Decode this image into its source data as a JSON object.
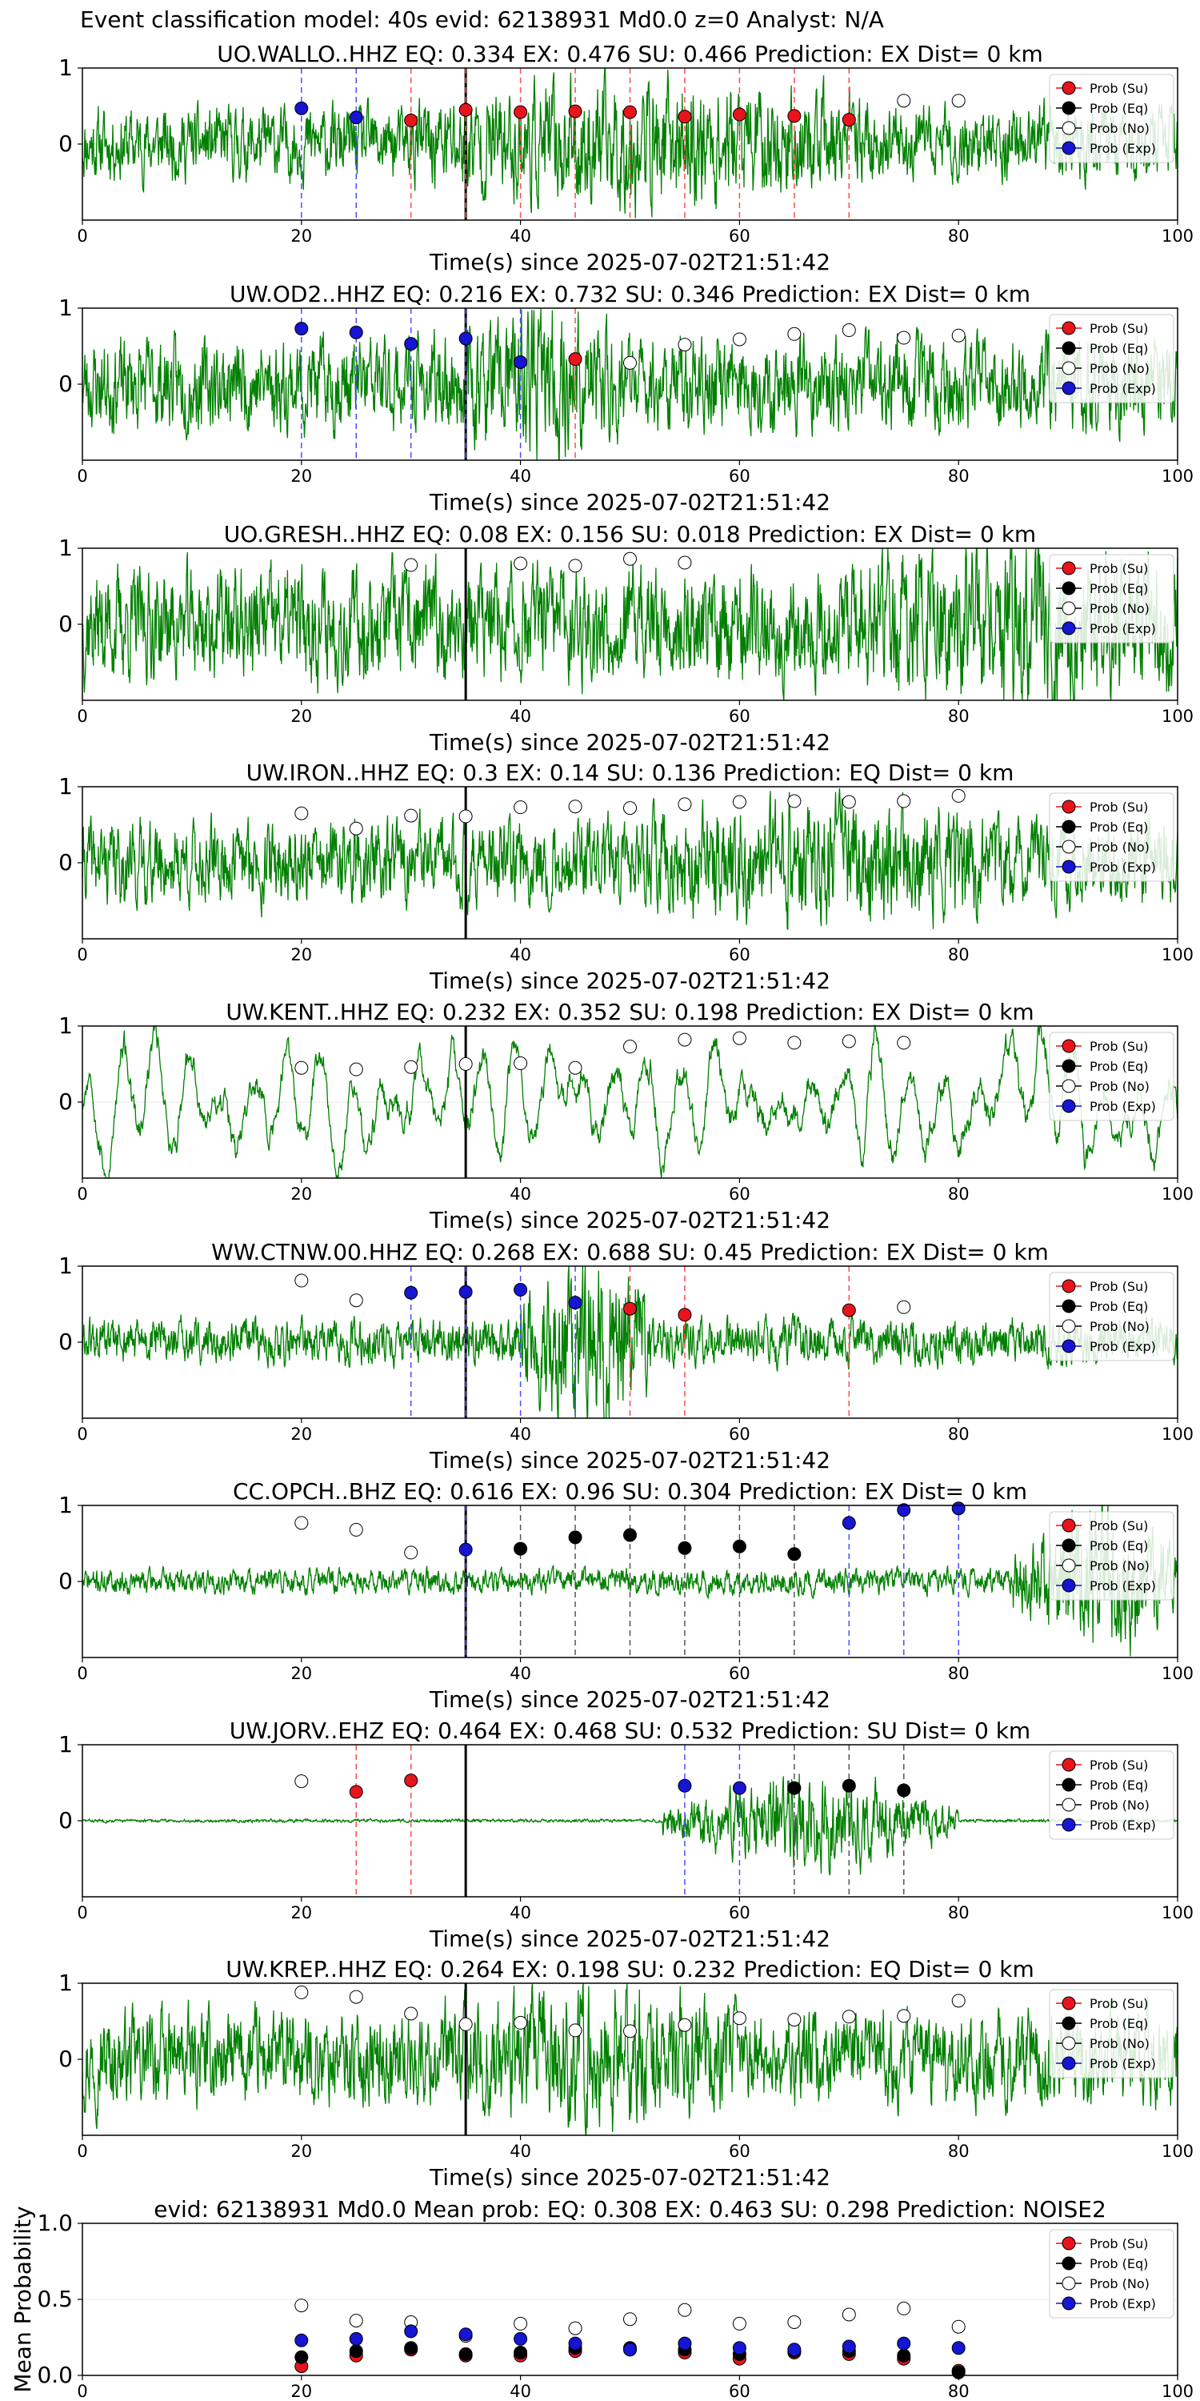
{
  "figure_title": "Event classification model: 40s evid: 62138931 Md0.0 z=0 Analyst: N/A",
  "legend_labels": [
    "Prob (Su)",
    "Prob (Eq)",
    "Prob (No)",
    "Prob (Exp)"
  ],
  "colors": {
    "su": "#e8141c",
    "eq": "#000000",
    "no": "#ffffff",
    "exp": "#1515d2",
    "trace": "#008000",
    "su_line": "#ff4d4d",
    "exp_line": "#4d4dff",
    "eq_line": "#555555"
  },
  "chart_data": [
    {
      "type": "scatter",
      "title": "UO.WALLO..HHZ   EQ: 0.334  EX: 0.476  SU: 0.466    Prediction: EX    Dist= 0 km",
      "xlabel": "Time(s) since 2025-07-02T21:51:42",
      "ylabel": "",
      "xlim": [
        0,
        100
      ],
      "ylim": [
        -1,
        1
      ],
      "xticks": [
        0,
        20,
        40,
        60,
        80,
        100
      ],
      "yticks": [
        0,
        1
      ],
      "pick_time": 35,
      "waveform": {
        "amplitude": 0.35,
        "burst": [
          30,
          72,
          1.8
        ],
        "seed": 11
      },
      "points": [
        {
          "x": 20,
          "y": 0.47,
          "cls": "exp"
        },
        {
          "x": 25,
          "y": 0.35,
          "cls": "exp"
        },
        {
          "x": 30,
          "y": 0.31,
          "cls": "su"
        },
        {
          "x": 35,
          "y": 0.45,
          "cls": "su"
        },
        {
          "x": 40,
          "y": 0.42,
          "cls": "su"
        },
        {
          "x": 45,
          "y": 0.43,
          "cls": "su"
        },
        {
          "x": 50,
          "y": 0.42,
          "cls": "su"
        },
        {
          "x": 55,
          "y": 0.36,
          "cls": "su"
        },
        {
          "x": 60,
          "y": 0.39,
          "cls": "su"
        },
        {
          "x": 65,
          "y": 0.37,
          "cls": "su"
        },
        {
          "x": 70,
          "y": 0.32,
          "cls": "su"
        },
        {
          "x": 75,
          "y": 0.57,
          "cls": "no"
        },
        {
          "x": 80,
          "y": 0.57,
          "cls": "no"
        }
      ]
    },
    {
      "type": "scatter",
      "title": "UW.OD2..HHZ   EQ: 0.216  EX: 0.732  SU: 0.346   Prediction: EX    Dist= 0 km",
      "xlabel": "Time(s) since 2025-07-02T21:51:42",
      "ylabel": "",
      "xlim": [
        0,
        100
      ],
      "ylim": [
        -1,
        1
      ],
      "xticks": [
        0,
        20,
        40,
        60,
        80,
        100
      ],
      "yticks": [
        0,
        1
      ],
      "pick_time": 35,
      "waveform": {
        "amplitude": 0.45,
        "burst": [
          35,
          50,
          1.6
        ],
        "seed": 23
      },
      "points": [
        {
          "x": 20,
          "y": 0.73,
          "cls": "exp"
        },
        {
          "x": 25,
          "y": 0.68,
          "cls": "exp"
        },
        {
          "x": 30,
          "y": 0.53,
          "cls": "exp"
        },
        {
          "x": 35,
          "y": 0.6,
          "cls": "exp"
        },
        {
          "x": 40,
          "y": 0.29,
          "cls": "exp"
        },
        {
          "x": 45,
          "y": 0.33,
          "cls": "su"
        },
        {
          "x": 50,
          "y": 0.28,
          "cls": "no"
        },
        {
          "x": 55,
          "y": 0.52,
          "cls": "no"
        },
        {
          "x": 60,
          "y": 0.59,
          "cls": "no"
        },
        {
          "x": 65,
          "y": 0.66,
          "cls": "no"
        },
        {
          "x": 70,
          "y": 0.71,
          "cls": "no"
        },
        {
          "x": 75,
          "y": 0.61,
          "cls": "no"
        },
        {
          "x": 80,
          "y": 0.64,
          "cls": "no"
        }
      ]
    },
    {
      "type": "scatter",
      "title": "UO.GRESH..HHZ   EQ: 0.08  EX: 0.156  SU: 0.018   Prediction: EX    Dist= 0 km",
      "xlabel": "Time(s) since 2025-07-02T21:51:42",
      "ylabel": "",
      "xlim": [
        0,
        100
      ],
      "ylim": [
        -1,
        1
      ],
      "xticks": [
        0,
        20,
        40,
        60,
        80,
        100
      ],
      "yticks": [
        0,
        1
      ],
      "pick_time": 35,
      "waveform": {
        "amplitude": 0.55,
        "burst": [
          70,
          100,
          1.5
        ],
        "seed": 37
      },
      "points": [
        {
          "x": 30,
          "y": 0.78,
          "cls": "no"
        },
        {
          "x": 40,
          "y": 0.8,
          "cls": "no"
        },
        {
          "x": 45,
          "y": 0.77,
          "cls": "no"
        },
        {
          "x": 50,
          "y": 0.86,
          "cls": "no"
        },
        {
          "x": 55,
          "y": 0.81,
          "cls": "no"
        }
      ]
    },
    {
      "type": "scatter",
      "title": "UW.IRON..HHZ   EQ: 0.3  EX: 0.14  SU: 0.136   Prediction: EQ    Dist= 0 km",
      "xlabel": "Time(s) since 2025-07-02T21:51:42",
      "ylabel": "",
      "xlim": [
        0,
        100
      ],
      "ylim": [
        -1,
        1
      ],
      "xticks": [
        0,
        20,
        40,
        60,
        80,
        100
      ],
      "yticks": [
        0,
        1
      ],
      "pick_time": 35,
      "waveform": {
        "amplitude": 0.4,
        "burst": [
          50,
          85,
          1.5
        ],
        "seed": 41
      },
      "points": [
        {
          "x": 20,
          "y": 0.65,
          "cls": "no"
        },
        {
          "x": 25,
          "y": 0.45,
          "cls": "no"
        },
        {
          "x": 30,
          "y": 0.62,
          "cls": "no"
        },
        {
          "x": 35,
          "y": 0.61,
          "cls": "no"
        },
        {
          "x": 40,
          "y": 0.73,
          "cls": "no"
        },
        {
          "x": 45,
          "y": 0.74,
          "cls": "no"
        },
        {
          "x": 50,
          "y": 0.72,
          "cls": "no"
        },
        {
          "x": 55,
          "y": 0.77,
          "cls": "no"
        },
        {
          "x": 60,
          "y": 0.8,
          "cls": "no"
        },
        {
          "x": 65,
          "y": 0.81,
          "cls": "no"
        },
        {
          "x": 70,
          "y": 0.8,
          "cls": "no"
        },
        {
          "x": 75,
          "y": 0.81,
          "cls": "no"
        },
        {
          "x": 80,
          "y": 0.88,
          "cls": "no"
        }
      ]
    },
    {
      "type": "scatter",
      "title": "UW.KENT..HHZ   EQ: 0.232  EX: 0.352  SU: 0.198   Prediction: EX    Dist= 0 km",
      "xlabel": "Time(s) since 2025-07-02T21:51:42",
      "ylabel": "",
      "xlim": [
        0,
        100
      ],
      "ylim": [
        -1,
        1
      ],
      "xticks": [
        0,
        20,
        40,
        60,
        80,
        100
      ],
      "yticks": [
        0,
        1
      ],
      "pick_time": 35,
      "waveform": {
        "amplitude": 0.5,
        "burst": [
          0,
          0,
          1.0
        ],
        "seed": 53,
        "style": "swell"
      },
      "points": [
        {
          "x": 20,
          "y": 0.45,
          "cls": "no"
        },
        {
          "x": 25,
          "y": 0.43,
          "cls": "no"
        },
        {
          "x": 30,
          "y": 0.46,
          "cls": "no"
        },
        {
          "x": 35,
          "y": 0.5,
          "cls": "no"
        },
        {
          "x": 40,
          "y": 0.51,
          "cls": "no"
        },
        {
          "x": 45,
          "y": 0.45,
          "cls": "no"
        },
        {
          "x": 50,
          "y": 0.73,
          "cls": "no"
        },
        {
          "x": 55,
          "y": 0.82,
          "cls": "no"
        },
        {
          "x": 60,
          "y": 0.84,
          "cls": "no"
        },
        {
          "x": 65,
          "y": 0.78,
          "cls": "no"
        },
        {
          "x": 70,
          "y": 0.8,
          "cls": "no"
        },
        {
          "x": 75,
          "y": 0.78,
          "cls": "no"
        }
      ]
    },
    {
      "type": "scatter",
      "title": "WW.CTNW.00.HHZ   EQ: 0.268  EX: 0.688  SU: 0.45   Prediction: EX    Dist= 0 km",
      "xlabel": "Time(s) since 2025-07-02T21:51:42",
      "ylabel": "",
      "xlim": [
        0,
        100
      ],
      "ylim": [
        -1,
        1
      ],
      "xticks": [
        0,
        20,
        40,
        60,
        80,
        100
      ],
      "yticks": [
        0,
        1
      ],
      "pick_time": 35,
      "waveform": {
        "amplitude": 0.22,
        "burst": [
          40,
          52,
          4.0
        ],
        "seed": 61
      },
      "points": [
        {
          "x": 20,
          "y": 0.81,
          "cls": "no"
        },
        {
          "x": 25,
          "y": 0.55,
          "cls": "no"
        },
        {
          "x": 30,
          "y": 0.65,
          "cls": "exp"
        },
        {
          "x": 35,
          "y": 0.66,
          "cls": "exp"
        },
        {
          "x": 40,
          "y": 0.69,
          "cls": "exp"
        },
        {
          "x": 45,
          "y": 0.52,
          "cls": "exp"
        },
        {
          "x": 50,
          "y": 0.44,
          "cls": "su"
        },
        {
          "x": 55,
          "y": 0.36,
          "cls": "su"
        },
        {
          "x": 70,
          "y": 0.42,
          "cls": "su"
        },
        {
          "x": 75,
          "y": 0.46,
          "cls": "no"
        }
      ]
    },
    {
      "type": "scatter",
      "title": "CC.OPCH..BHZ   EQ: 0.616  EX: 0.96  SU: 0.304   Prediction: EX    Dist= 0 km",
      "xlabel": "Time(s) since 2025-07-02T21:51:42",
      "ylabel": "",
      "xlim": [
        0,
        100
      ],
      "ylim": [
        -1,
        1
      ],
      "xticks": [
        0,
        20,
        40,
        60,
        80,
        100
      ],
      "yticks": [
        0,
        1
      ],
      "pick_time": 35,
      "waveform": {
        "amplitude": 0.12,
        "burst": [
          85,
          100,
          6.0
        ],
        "seed": 71
      },
      "points": [
        {
          "x": 20,
          "y": 0.77,
          "cls": "no"
        },
        {
          "x": 25,
          "y": 0.68,
          "cls": "no"
        },
        {
          "x": 30,
          "y": 0.38,
          "cls": "no"
        },
        {
          "x": 35,
          "y": 0.42,
          "cls": "exp"
        },
        {
          "x": 40,
          "y": 0.43,
          "cls": "eq"
        },
        {
          "x": 45,
          "y": 0.58,
          "cls": "eq"
        },
        {
          "x": 50,
          "y": 0.61,
          "cls": "eq"
        },
        {
          "x": 55,
          "y": 0.44,
          "cls": "eq"
        },
        {
          "x": 60,
          "y": 0.46,
          "cls": "eq"
        },
        {
          "x": 65,
          "y": 0.36,
          "cls": "eq"
        },
        {
          "x": 70,
          "y": 0.77,
          "cls": "exp"
        },
        {
          "x": 75,
          "y": 0.94,
          "cls": "exp"
        },
        {
          "x": 80,
          "y": 0.96,
          "cls": "exp"
        }
      ]
    },
    {
      "type": "scatter",
      "title": "UW.JORV..EHZ   EQ: 0.464  EX: 0.468  SU: 0.532   Prediction: SU    Dist= 0 km",
      "xlabel": "Time(s) since 2025-07-02T21:51:42",
      "ylabel": "",
      "xlim": [
        0,
        100
      ],
      "ylim": [
        -1,
        1
      ],
      "xticks": [
        0,
        20,
        40,
        60,
        80,
        100
      ],
      "yticks": [
        0,
        1
      ],
      "pick_time": 35,
      "waveform": {
        "amplitude": 0.015,
        "burst": [
          53,
          80,
          30.0
        ],
        "seed": 83
      },
      "points": [
        {
          "x": 20,
          "y": 0.52,
          "cls": "no"
        },
        {
          "x": 25,
          "y": 0.38,
          "cls": "su"
        },
        {
          "x": 30,
          "y": 0.53,
          "cls": "su"
        },
        {
          "x": 55,
          "y": 0.46,
          "cls": "exp"
        },
        {
          "x": 60,
          "y": 0.43,
          "cls": "exp"
        },
        {
          "x": 65,
          "y": 0.43,
          "cls": "eq"
        },
        {
          "x": 70,
          "y": 0.46,
          "cls": "eq"
        },
        {
          "x": 75,
          "y": 0.4,
          "cls": "eq"
        }
      ]
    },
    {
      "type": "scatter",
      "title": "UW.KREP..HHZ   EQ: 0.264  EX: 0.198  SU: 0.232   Prediction: EQ    Dist= 0 km",
      "xlabel": "Time(s) since 2025-07-02T21:51:42",
      "ylabel": "",
      "xlim": [
        0,
        100
      ],
      "ylim": [
        -1,
        1
      ],
      "xticks": [
        0,
        20,
        40,
        60,
        80,
        100
      ],
      "yticks": [
        0,
        1
      ],
      "pick_time": 35,
      "waveform": {
        "amplitude": 0.45,
        "burst": [
          33,
          60,
          1.5
        ],
        "seed": 97
      },
      "points": [
        {
          "x": 20,
          "y": 0.88,
          "cls": "no"
        },
        {
          "x": 25,
          "y": 0.82,
          "cls": "no"
        },
        {
          "x": 30,
          "y": 0.6,
          "cls": "no"
        },
        {
          "x": 35,
          "y": 0.46,
          "cls": "no"
        },
        {
          "x": 40,
          "y": 0.48,
          "cls": "no"
        },
        {
          "x": 45,
          "y": 0.38,
          "cls": "no"
        },
        {
          "x": 50,
          "y": 0.37,
          "cls": "no"
        },
        {
          "x": 55,
          "y": 0.45,
          "cls": "no"
        },
        {
          "x": 60,
          "y": 0.54,
          "cls": "no"
        },
        {
          "x": 65,
          "y": 0.52,
          "cls": "no"
        },
        {
          "x": 70,
          "y": 0.56,
          "cls": "no"
        },
        {
          "x": 75,
          "y": 0.57,
          "cls": "no"
        },
        {
          "x": 80,
          "y": 0.77,
          "cls": "no"
        }
      ]
    },
    {
      "type": "scatter",
      "title": "evid: 62138931  Md0.0   Mean prob:    EQ: 0.308  EX: 0.463  SU: 0.298   Prediction: NOISE2",
      "xlabel": "",
      "ylabel": "Mean Probability",
      "xlim": [
        0,
        100
      ],
      "ylim": [
        0,
        1
      ],
      "xticks": [
        0,
        20,
        40,
        60,
        80,
        100
      ],
      "yticks": [
        0.0,
        0.5,
        1.0
      ],
      "ytick_labels": [
        "0.0",
        "0.5",
        "1.0"
      ],
      "series": [
        {
          "name": "Prob (Su)",
          "cls": "su",
          "x": [
            20,
            25,
            30,
            35,
            40,
            45,
            50,
            55,
            60,
            65,
            70,
            75,
            80
          ],
          "y": [
            0.06,
            0.13,
            0.17,
            0.13,
            0.13,
            0.16,
            0.17,
            0.15,
            0.11,
            0.15,
            0.14,
            0.11,
            0.03
          ]
        },
        {
          "name": "Prob (Eq)",
          "cls": "eq",
          "x": [
            20,
            25,
            30,
            35,
            40,
            45,
            50,
            55,
            60,
            65,
            70,
            75,
            80
          ],
          "y": [
            0.12,
            0.16,
            0.18,
            0.14,
            0.15,
            0.18,
            0.18,
            0.17,
            0.14,
            0.16,
            0.16,
            0.13,
            0.02
          ]
        },
        {
          "name": "Prob (No)",
          "cls": "no",
          "x": [
            20,
            25,
            30,
            35,
            40,
            45,
            50,
            55,
            60,
            65,
            70,
            75,
            80
          ],
          "y": [
            0.46,
            0.36,
            0.35,
            0.26,
            0.34,
            0.31,
            0.37,
            0.43,
            0.34,
            0.35,
            0.4,
            0.44,
            0.32
          ]
        },
        {
          "name": "Prob (Exp)",
          "cls": "exp",
          "x": [
            20,
            25,
            30,
            35,
            40,
            45,
            50,
            55,
            60,
            65,
            70,
            75,
            80
          ],
          "y": [
            0.23,
            0.24,
            0.29,
            0.27,
            0.24,
            0.21,
            0.17,
            0.21,
            0.18,
            0.17,
            0.19,
            0.21,
            0.18
          ]
        }
      ]
    }
  ]
}
